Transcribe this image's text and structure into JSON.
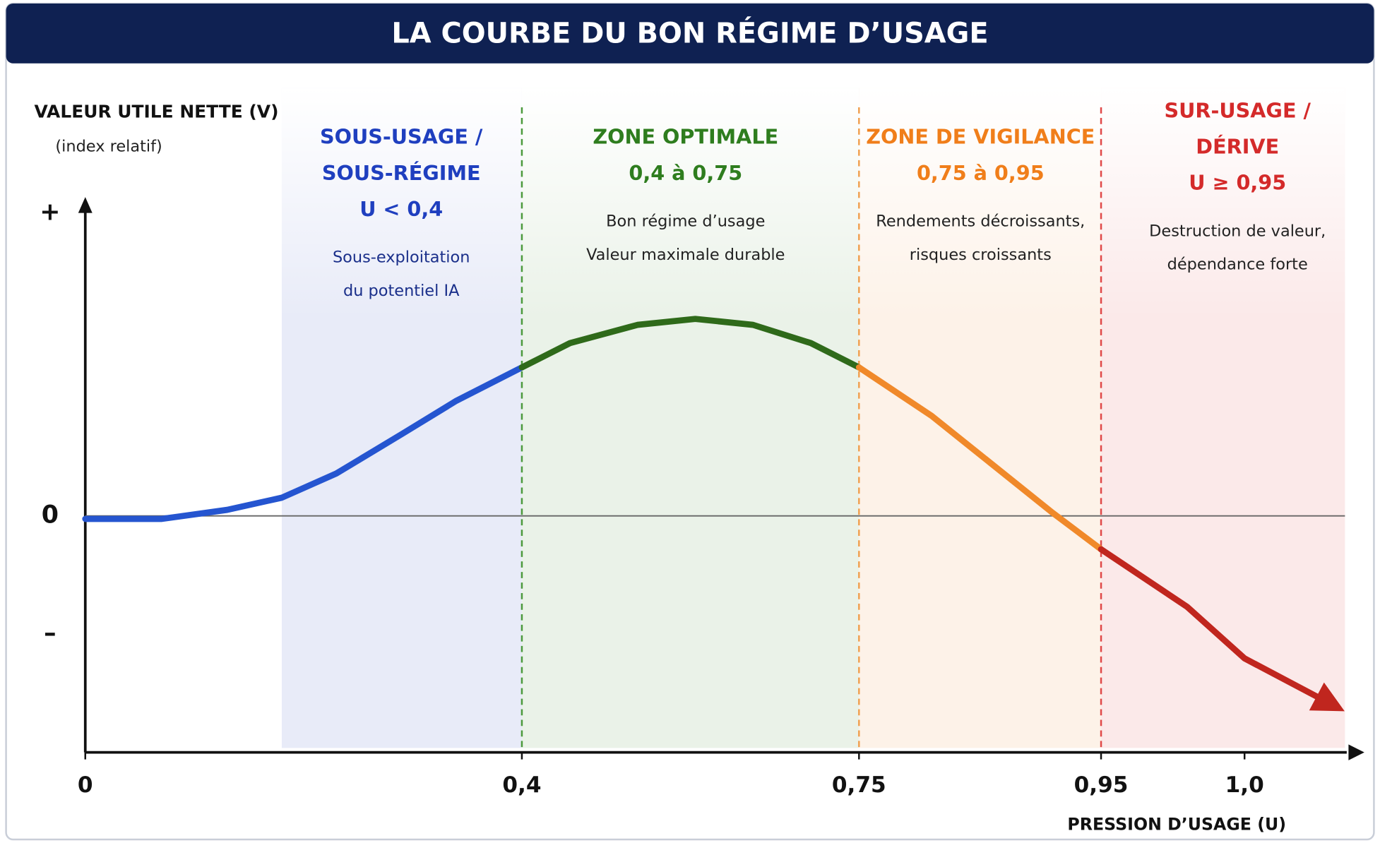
{
  "chart_data": {
    "type": "line",
    "title": "LA COURBE DU BON RÉGIME D’USAGE",
    "y_label": "VALEUR UTILE NETTE (V)",
    "y_sublabel": "(index relatif)",
    "x_label": "PRESSION D’USAGE (U)",
    "xlim": [
      0,
      1.035
    ],
    "xticks": [
      0,
      {
        "value": 0.4,
        "label": "0,4"
      },
      {
        "value": 0.75,
        "label": "0,75"
      },
      {
        "value": 0.95,
        "label": "0,95"
      },
      {
        "value": 1.0,
        "label": "1,0"
      }
    ],
    "ylim": [
      -0.78,
      1.04
    ],
    "yticks": [
      {
        "value": 1,
        "label": "+"
      },
      0,
      {
        "value": -0.39,
        "label": "–"
      }
    ],
    "grid": false,
    "series": [
      {
        "color": "#2555d0",
        "x": [
          0,
          0.07,
          0.13,
          0.18,
          0.23,
          0.29,
          0.34,
          0.4
        ],
        "values": [
          -0.01,
          -0.01,
          0.02,
          0.06,
          0.14,
          0.27,
          0.38,
          0.49
        ]
      },
      {
        "color": "#2f6a1a",
        "x": [
          0.4,
          0.45,
          0.52,
          0.58,
          0.64,
          0.7,
          0.75
        ],
        "values": [
          0.49,
          0.57,
          0.63,
          0.65,
          0.63,
          0.57,
          0.49
        ]
      },
      {
        "color": "#f0892a",
        "x": [
          0.75,
          0.81,
          0.86,
          0.91,
          0.95
        ],
        "values": [
          0.49,
          0.33,
          0.17,
          0.01,
          -0.11
        ]
      },
      {
        "color": "#c0261e",
        "x": [
          0.95,
          0.98,
          1.0,
          1.03
        ],
        "values": [
          -0.11,
          -0.3,
          -0.47,
          -0.62
        ]
      }
    ],
    "zones": [
      {
        "title": [
          "SOUS-USAGE /",
          "SOUS-RÉGIME"
        ],
        "range": "U < 0,4",
        "desc": [
          "Sous-exploitation",
          "du potentiel IA"
        ],
        "color": "#1f3fbf",
        "span": [
          0.18,
          0.4
        ]
      },
      {
        "title": [
          "ZONE OPTIMALE"
        ],
        "range": "0,4 à 0,75",
        "desc": [
          "Bon régime d’usage",
          "Valeur maximale durable"
        ],
        "color": "#2e7d1e",
        "span": [
          0.4,
          0.75
        ]
      },
      {
        "title": [
          "ZONE DE VIGILANCE"
        ],
        "range": "0,75 à 0,95",
        "desc": [
          "Rendements décroissants,",
          "risques croissants"
        ],
        "color": "#f07e1a",
        "span": [
          0.75,
          0.95
        ]
      },
      {
        "title": [
          "SUR-USAGE /",
          "DÉRIVE"
        ],
        "range": "U ≥ 0,95",
        "desc": [
          "Destruction de valeur,",
          "dépendance forte"
        ],
        "color": "#d42a2a",
        "span": [
          0.95,
          1.035
        ]
      }
    ]
  }
}
